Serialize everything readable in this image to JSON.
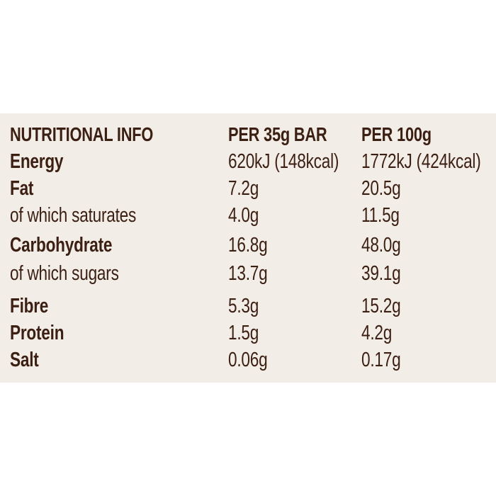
{
  "colors": {
    "panel_background": "#f3ede7",
    "text": "#3b1f13"
  },
  "table": {
    "headers": {
      "name": "NUTRITIONAL INFO",
      "per_bar": "PER 35g BAR",
      "per_100g": "PER 100g"
    },
    "rows": [
      {
        "label": "Energy",
        "per_bar": "620kJ (148kcal)",
        "per_100g": "1772kJ (424kcal)",
        "emphasis": "bold"
      },
      {
        "label": "Fat",
        "per_bar": "7.2g",
        "per_100g": "20.5g",
        "emphasis": "bold"
      },
      {
        "label": "of which saturates",
        "per_bar": "4.0g",
        "per_100g": "11.5g",
        "emphasis": "regular"
      },
      {
        "label": "Carbohydrate",
        "per_bar": "16.8g",
        "per_100g": "48.0g",
        "emphasis": "bold"
      },
      {
        "label": "of which sugars",
        "per_bar": "13.7g",
        "per_100g": "39.1g",
        "emphasis": "regular"
      },
      {
        "label": "Fibre",
        "per_bar": "5.3g",
        "per_100g": "15.2g",
        "emphasis": "bold"
      },
      {
        "label": "Protein",
        "per_bar": "1.5g",
        "per_100g": "4.2g",
        "emphasis": "bold"
      },
      {
        "label": "Salt",
        "per_bar": "0.06g",
        "per_100g": "0.17g",
        "emphasis": "bold"
      }
    ]
  }
}
